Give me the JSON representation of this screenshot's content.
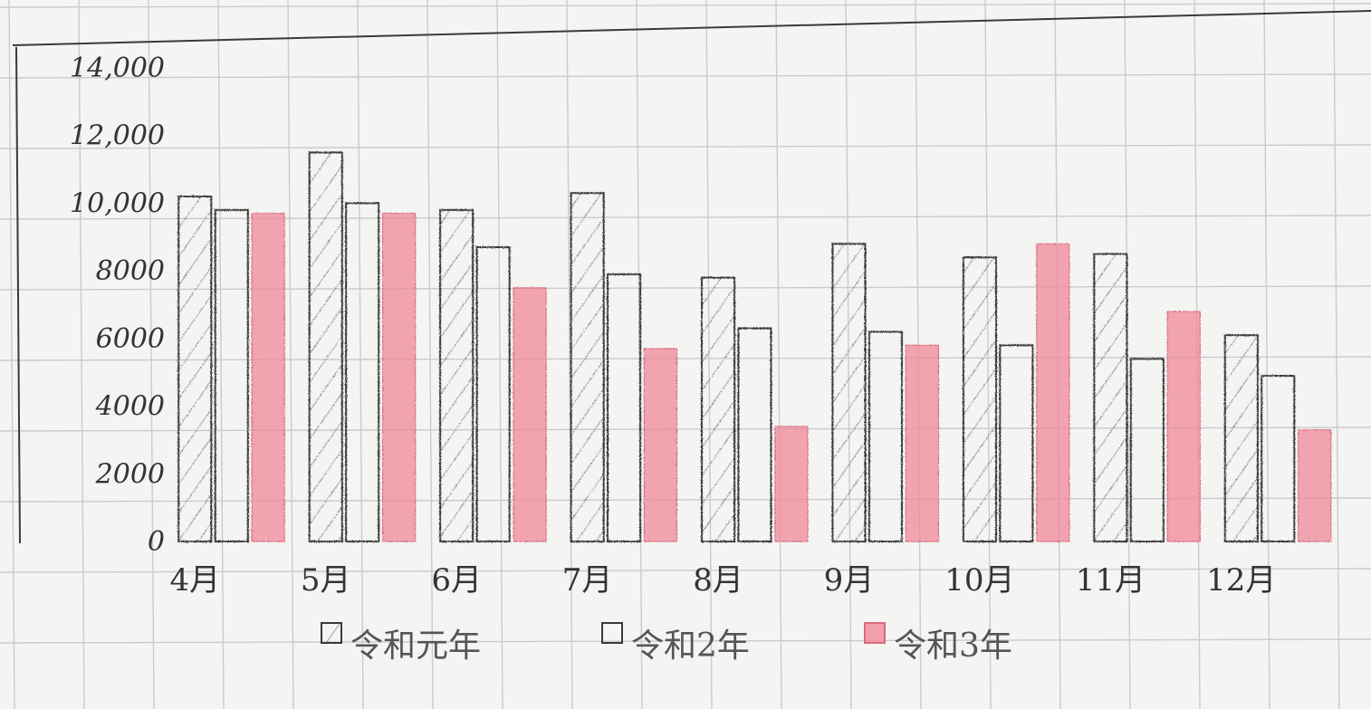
{
  "chart_data": {
    "type": "bar",
    "title": "",
    "xlabel": "",
    "ylabel": "",
    "ylim": [
      0,
      14000
    ],
    "y_ticks": [
      {
        "value": 0,
        "label": "0"
      },
      {
        "value": 2000,
        "label": "2000"
      },
      {
        "value": 4000,
        "label": "4000"
      },
      {
        "value": 6000,
        "label": "6000"
      },
      {
        "value": 8000,
        "label": "8000"
      },
      {
        "value": 10000,
        "label": "10,000"
      },
      {
        "value": 12000,
        "label": "12,000"
      },
      {
        "value": 14000,
        "label": "14,000"
      }
    ],
    "categories": [
      "4月",
      "5月",
      "6月",
      "7月",
      "8月",
      "9月",
      "10月",
      "11月",
      "12月"
    ],
    "series": [
      {
        "name": "令和元年",
        "pattern": "hatched",
        "values": [
          10200,
          11500,
          9800,
          10300,
          7800,
          8800,
          8400,
          8500,
          6100
        ]
      },
      {
        "name": "令和2年",
        "pattern": "outline",
        "values": [
          9800,
          10000,
          8700,
          7900,
          6300,
          6200,
          5800,
          5400,
          4900
        ]
      },
      {
        "name": "令和3年",
        "pattern": "red",
        "values": [
          9700,
          9700,
          7500,
          5700,
          3400,
          5800,
          8800,
          6800,
          3300
        ]
      }
    ],
    "legend_position": "bottom",
    "grid": true,
    "colors": {
      "paper": "#f4f4f2",
      "grid": "#c9cbcc",
      "ink": "#3a3a3a",
      "red": "#f08a9a"
    }
  }
}
